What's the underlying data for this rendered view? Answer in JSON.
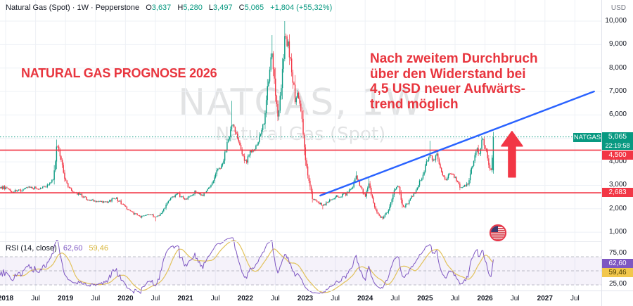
{
  "header": {
    "title": "Natural Gas (Spot) · 1W · Pepperstone",
    "ohlc": {
      "o": {
        "label": "O",
        "value": "3,637"
      },
      "h": {
        "label": "H",
        "value": "5,280"
      },
      "l": {
        "label": "L",
        "value": "3,497"
      },
      "c": {
        "label": "C",
        "value": "5,065"
      },
      "change": "+1,804 (+55,32%)"
    },
    "currency": "USD"
  },
  "annotations": {
    "title": "NATURAL GAS PROGNOSE 2026",
    "forecast_lines": [
      "Nach zweitem Durchbruch",
      "über den Widerstand bei",
      "4,5 USD neuer Aufwärts-",
      "trend möglich"
    ]
  },
  "watermark": {
    "line1": "NATGAS, 1W",
    "line2": "Natural Gas (Spot)"
  },
  "badges": {
    "symbol_chip": "NATGAS",
    "last_price": "5,065",
    "countdown": "22:19:58",
    "resistance": "4,500",
    "support": "2,683",
    "rsi_value": "62,60",
    "rsi_ma": "59,46"
  },
  "rsi_label": {
    "name": "RSI (14, close)",
    "value": "62,60",
    "ma": "59,46"
  },
  "colors": {
    "up": "#089981",
    "down": "#f23645",
    "line_red": "#f23645",
    "trend_blue": "#2962ff",
    "current_teal": "#089981",
    "rsi_purple": "#7e57c2",
    "rsi_yellow": "#e2c25c",
    "annotation_red": "#e8353e",
    "grid": "#eef1f6"
  },
  "chart_data": {
    "type": "candlestick",
    "title": "Natural Gas (Spot) weekly candles with RSI(14) subpanel",
    "x_axis": {
      "ticks": [
        {
          "label": "2018",
          "t": 2018
        },
        {
          "label": "Jul",
          "t": 2018.5
        },
        {
          "label": "2019",
          "t": 2019
        },
        {
          "label": "Jul",
          "t": 2019.5
        },
        {
          "label": "2020",
          "t": 2020
        },
        {
          "label": "Jul",
          "t": 2020.5
        },
        {
          "label": "2021",
          "t": 2021
        },
        {
          "label": "Jul",
          "t": 2021.5
        },
        {
          "label": "2022",
          "t": 2022
        },
        {
          "label": "Jul",
          "t": 2022.5
        },
        {
          "label": "2023",
          "t": 2023
        },
        {
          "label": "Jul",
          "t": 2023.5
        },
        {
          "label": "2024",
          "t": 2024
        },
        {
          "label": "Jul",
          "t": 2024.5
        },
        {
          "label": "2025",
          "t": 2025
        },
        {
          "label": "Jul",
          "t": 2025.5
        },
        {
          "label": "2026",
          "t": 2026
        },
        {
          "label": "Jul",
          "t": 2026.5
        },
        {
          "label": "2027",
          "t": 2027
        },
        {
          "label": "Jul",
          "t": 2027.5
        }
      ]
    },
    "y_axis": {
      "unit": "USD",
      "ticks": [
        {
          "label": "10,000",
          "value": 10000
        },
        {
          "label": "9,000",
          "value": 9000
        },
        {
          "label": "8,000",
          "value": 8000
        },
        {
          "label": "7,000",
          "value": 7000
        },
        {
          "label": "6,000",
          "value": 6000
        },
        {
          "label": "4,000",
          "value": 4000
        },
        {
          "label": "3,000",
          "value": 3000
        },
        {
          "label": "2,000",
          "value": 2000
        },
        {
          "label": "1,000",
          "value": 1000
        }
      ]
    },
    "rsi_axis": {
      "ticks": [
        {
          "label": "75,00",
          "value": 75
        },
        {
          "label": "25,00",
          "value": 25
        }
      ],
      "bands": [
        70,
        50,
        30
      ]
    },
    "levels": {
      "current_price": 5065,
      "resistance": 4500,
      "support": 2683
    },
    "trendline": {
      "t1": 2023.25,
      "p1": 2564,
      "t2": 2027.82,
      "p2": 7000
    },
    "arrow": {
      "t": 2026.45,
      "price_from": 3350,
      "price_to": 5300
    },
    "last_candle": {
      "open": 3637,
      "high": 5280,
      "low": 3497,
      "close": 5065
    },
    "close_anchors": [
      [
        2017.6,
        2950
      ],
      [
        2018.0,
        2900
      ],
      [
        2018.1,
        2700
      ],
      [
        2018.25,
        2780
      ],
      [
        2018.4,
        2900
      ],
      [
        2018.55,
        2850
      ],
      [
        2018.7,
        3000
      ],
      [
        2018.8,
        3250
      ],
      [
        2018.85,
        4650
      ],
      [
        2018.9,
        4350
      ],
      [
        2018.95,
        3800
      ],
      [
        2019.0,
        3150
      ],
      [
        2019.1,
        2750
      ],
      [
        2019.25,
        2600
      ],
      [
        2019.4,
        2350
      ],
      [
        2019.55,
        2300
      ],
      [
        2019.7,
        2250
      ],
      [
        2019.82,
        2500
      ],
      [
        2019.95,
        2200
      ],
      [
        2020.1,
        1850
      ],
      [
        2020.25,
        1650
      ],
      [
        2020.38,
        1800
      ],
      [
        2020.5,
        1650
      ],
      [
        2020.6,
        1800
      ],
      [
        2020.7,
        2300
      ],
      [
        2020.8,
        2550
      ],
      [
        2020.88,
        2600
      ],
      [
        2021.0,
        2400
      ],
      [
        2021.1,
        2550
      ],
      [
        2021.18,
        2750
      ],
      [
        2021.25,
        2550
      ],
      [
        2021.32,
        2650
      ],
      [
        2021.42,
        2950
      ],
      [
        2021.52,
        3600
      ],
      [
        2021.62,
        3900
      ],
      [
        2021.72,
        5000
      ],
      [
        2021.78,
        5600
      ],
      [
        2021.84,
        5300
      ],
      [
        2021.9,
        4900
      ],
      [
        2021.96,
        4200
      ],
      [
        2022.02,
        3900
      ],
      [
        2022.08,
        4550
      ],
      [
        2022.15,
        4400
      ],
      [
        2022.22,
        4900
      ],
      [
        2022.3,
        5500
      ],
      [
        2022.38,
        7300
      ],
      [
        2022.44,
        8600
      ],
      [
        2022.5,
        7000
      ],
      [
        2022.55,
        5900
      ],
      [
        2022.62,
        7800
      ],
      [
        2022.66,
        9300
      ],
      [
        2022.72,
        8900
      ],
      [
        2022.78,
        7800
      ],
      [
        2022.84,
        6500
      ],
      [
        2022.88,
        6900
      ],
      [
        2022.94,
        5900
      ],
      [
        2023.0,
        4200
      ],
      [
        2023.05,
        3300
      ],
      [
        2023.12,
        2450
      ],
      [
        2023.2,
        2250
      ],
      [
        2023.3,
        2150
      ],
      [
        2023.4,
        2350
      ],
      [
        2023.5,
        2500
      ],
      [
        2023.6,
        2550
      ],
      [
        2023.7,
        2650
      ],
      [
        2023.78,
        2900
      ],
      [
        2023.85,
        3350
      ],
      [
        2023.92,
        2900
      ],
      [
        2024.0,
        2500
      ],
      [
        2024.06,
        3100
      ],
      [
        2024.14,
        2200
      ],
      [
        2024.22,
        1700
      ],
      [
        2024.3,
        1600
      ],
      [
        2024.4,
        2000
      ],
      [
        2024.48,
        2700
      ],
      [
        2024.55,
        3050
      ],
      [
        2024.63,
        2050
      ],
      [
        2024.72,
        2250
      ],
      [
        2024.8,
        2600
      ],
      [
        2024.88,
        3000
      ],
      [
        2024.96,
        3400
      ],
      [
        2025.02,
        4000
      ],
      [
        2025.08,
        4300
      ],
      [
        2025.14,
        4000
      ],
      [
        2025.2,
        4300
      ],
      [
        2025.27,
        3600
      ],
      [
        2025.33,
        3200
      ],
      [
        2025.4,
        3500
      ],
      [
        2025.48,
        3400
      ],
      [
        2025.56,
        3000
      ],
      [
        2025.64,
        2900
      ],
      [
        2025.72,
        3100
      ],
      [
        2025.8,
        4000
      ],
      [
        2025.86,
        4650
      ],
      [
        2025.9,
        4350
      ],
      [
        2025.96,
        5050
      ],
      [
        2026.02,
        4400
      ],
      [
        2026.07,
        3850
      ],
      [
        2026.1,
        3637
      ],
      [
        2026.155,
        5065
      ]
    ],
    "wick_highs": [
      [
        2018.85,
        4900
      ],
      [
        2021.78,
        6600
      ],
      [
        2022.44,
        9400
      ],
      [
        2022.66,
        10000
      ],
      [
        2023.85,
        3600
      ],
      [
        2024.06,
        3300
      ],
      [
        2025.08,
        4900
      ],
      [
        2026.155,
        5280
      ]
    ],
    "wick_lows": [
      [
        2020.5,
        1470
      ],
      [
        2023.3,
        1980
      ],
      [
        2024.3,
        1530
      ],
      [
        2026.155,
        3497
      ]
    ],
    "rsi": {
      "period": 14,
      "ma_period": 14,
      "last": 62.6,
      "ma_last": 59.46
    }
  }
}
